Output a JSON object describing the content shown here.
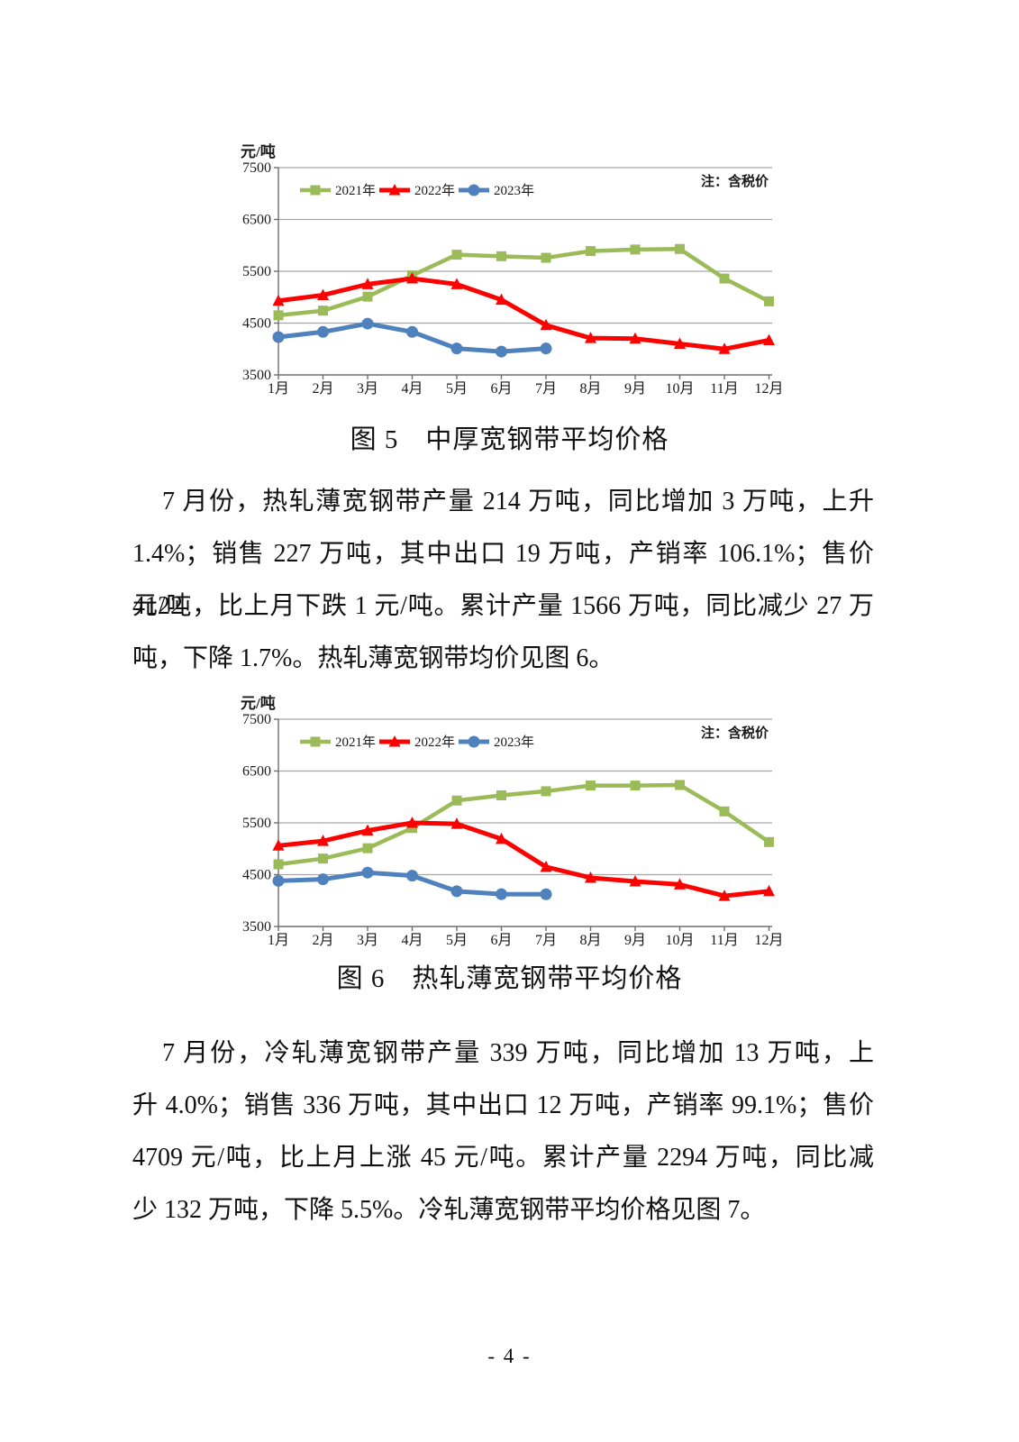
{
  "page": {
    "number_label": "- 4 -"
  },
  "figure5": {
    "caption_num": "图 5",
    "caption_title": "中厚宽钢带平均价格"
  },
  "figure6": {
    "caption_num": "图 6",
    "caption_title": "热轧薄宽钢带平均价格"
  },
  "paragraph1": {
    "lines": [
      "7 月份，热轧薄宽钢带产量 214 万吨，同比增加 3 万吨，上升",
      "1.4%；销售 227 万吨，其中出口 19 万吨，产销率 106.1%；售价 4122",
      "元/吨，比上月下跌 1 元/吨。累计产量 1566 万吨，同比减少 27 万",
      "吨，下降 1.7%。热轧薄宽钢带均价见图 6。"
    ]
  },
  "paragraph2": {
    "lines": [
      "7 月份，冷轧薄宽钢带产量 339 万吨，同比增加 13 万吨，上",
      "升 4.0%；销售 336 万吨，其中出口 12 万吨，产销率 99.1%；售价",
      "4709 元/吨，比上月上涨 45 元/吨。累计产量 2294 万吨，同比减",
      "少 132 万吨，下降 5.5%。冷轧薄宽钢带平均价格见图 7。"
    ]
  },
  "chart_data": [
    {
      "id": "figure5",
      "type": "line",
      "title": "图 5 中厚宽钢带平均价格",
      "ylabel": "元/吨",
      "note": "注：含税价",
      "grid": true,
      "legend_position": "top-inside",
      "ylim": [
        3500,
        7500
      ],
      "yticks": [
        3500,
        4500,
        5500,
        6500,
        7500
      ],
      "x_categories": [
        "1月",
        "2月",
        "3月",
        "4月",
        "5月",
        "6月",
        "7月",
        "8月",
        "9月",
        "10月",
        "11月",
        "12月"
      ],
      "series": [
        {
          "name": "2021年",
          "color": "#9bbb59",
          "marker": "square",
          "line_width": 4.5,
          "values": [
            4650,
            4740,
            5010,
            5420,
            5820,
            5790,
            5760,
            5890,
            5920,
            5930,
            5360,
            4920
          ]
        },
        {
          "name": "2022年",
          "color": "#fe0000",
          "marker": "triangle",
          "line_width": 5,
          "values": [
            4930,
            5040,
            5250,
            5360,
            5250,
            4950,
            4460,
            4210,
            4200,
            4100,
            4000,
            4170
          ]
        },
        {
          "name": "2023年",
          "color": "#4f81bd",
          "marker": "circle",
          "line_width": 5,
          "values": [
            4230,
            4330,
            4490,
            4330,
            4010,
            3950,
            4010
          ]
        }
      ]
    },
    {
      "id": "figure6",
      "type": "line",
      "title": "图 6 热轧薄宽钢带平均价格",
      "ylabel": "元/吨",
      "note": "注：含税价",
      "grid": true,
      "legend_position": "top-inside",
      "ylim": [
        3500,
        7500
      ],
      "yticks": [
        3500,
        4500,
        5500,
        6500,
        7500
      ],
      "x_categories": [
        "1月",
        "2月",
        "3月",
        "4月",
        "5月",
        "6月",
        "7月",
        "8月",
        "9月",
        "10月",
        "11月",
        "12月"
      ],
      "series": [
        {
          "name": "2021年",
          "color": "#9bbb59",
          "marker": "square",
          "line_width": 4.5,
          "values": [
            4700,
            4810,
            5010,
            5400,
            5930,
            6030,
            6110,
            6220,
            6220,
            6230,
            5720,
            5130
          ]
        },
        {
          "name": "2022年",
          "color": "#fe0000",
          "marker": "triangle",
          "line_width": 5,
          "values": [
            5060,
            5150,
            5350,
            5500,
            5480,
            5190,
            4650,
            4440,
            4370,
            4310,
            4090,
            4180
          ]
        },
        {
          "name": "2023年",
          "color": "#4f81bd",
          "marker": "circle",
          "line_width": 5,
          "values": [
            4380,
            4410,
            4540,
            4480,
            4180,
            4123,
            4122
          ]
        }
      ]
    }
  ]
}
